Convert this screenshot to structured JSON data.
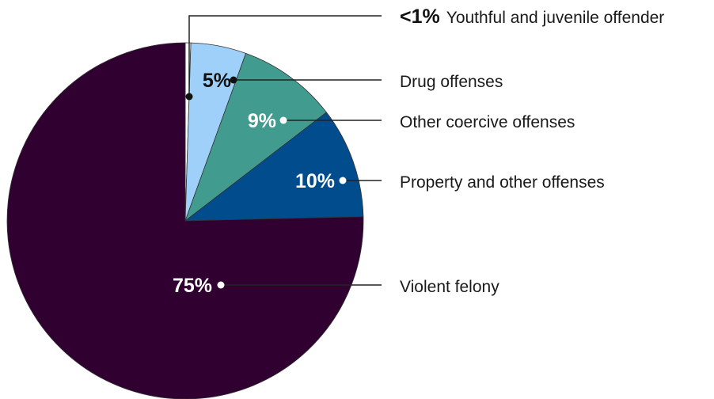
{
  "chart_data": {
    "type": "pie",
    "title": "",
    "legend": "none",
    "start_angle": "12 o'clock, clockwise",
    "slices": [
      {
        "label": "Youthful and juvenile offender",
        "value": 0.5,
        "data_label": "<1%",
        "color": "#ffffff"
      },
      {
        "label": "Drug offenses",
        "value": 5,
        "data_label": "5%",
        "color": "#9ed0f9"
      },
      {
        "label": "Other coercive offenses",
        "value": 9,
        "data_label": "9%",
        "color": "#429b8f"
      },
      {
        "label": "Property and other offenses",
        "value": 10,
        "data_label": "10%",
        "color": "#004c8c"
      },
      {
        "label": "Violent felony",
        "value": 75,
        "data_label": "75%",
        "color": "#300030"
      }
    ]
  }
}
